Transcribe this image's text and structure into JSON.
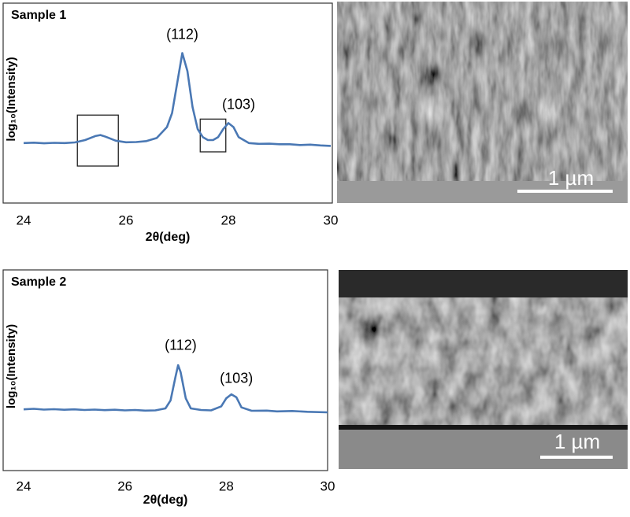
{
  "chart_data": [
    {
      "type": "line",
      "title": "Sample 1",
      "xlabel": "2θ(deg)",
      "ylabel": "log₁₀(Intensity)",
      "x": [
        24.0,
        24.2,
        24.4,
        24.6,
        24.8,
        25.0,
        25.2,
        25.4,
        25.5,
        25.6,
        25.8,
        26.0,
        26.2,
        26.4,
        26.6,
        26.8,
        26.9,
        27.0,
        27.1,
        27.2,
        27.3,
        27.4,
        27.5,
        27.6,
        27.7,
        27.8,
        27.9,
        28.0,
        28.1,
        28.2,
        28.4,
        28.6,
        28.8,
        29.0,
        29.2,
        29.4,
        29.6,
        29.8,
        30.0
      ],
      "series": [
        {
          "color": "#4a78b4",
          "values": [
            30.0,
            30.2,
            29.9,
            30.1,
            30.0,
            30.3,
            31.5,
            33.5,
            34.0,
            33.2,
            31.2,
            30.4,
            30.5,
            31.0,
            32.5,
            38,
            45,
            60,
            75,
            66,
            48,
            37,
            33,
            31.5,
            31.5,
            33,
            37,
            40,
            38,
            33,
            30,
            29.6,
            29.7,
            29.4,
            29.4,
            29.0,
            29.2,
            28.8,
            28.6
          ]
        }
      ],
      "xlim": [
        24,
        30
      ],
      "ylim": [
        0,
        100
      ],
      "xticks": [
        24,
        26,
        28,
        30
      ],
      "annotations": [
        {
          "text": "(112)",
          "x": 27.1,
          "y": 84
        },
        {
          "text": "(103)",
          "x": 28.2,
          "y": 49
        }
      ],
      "highlight_boxes": [
        {
          "x": [
            25.05,
            25.85
          ],
          "y": [
            18.5,
            44
          ]
        },
        {
          "x": [
            27.45,
            27.95
          ],
          "y": [
            25.6,
            42
          ]
        }
      ]
    },
    {
      "type": "line",
      "title": "Sample 2",
      "xlabel": "2θ(deg)",
      "ylabel": "log₁₀(Intensity)",
      "x": [
        24.0,
        24.2,
        24.4,
        24.6,
        24.8,
        25.0,
        25.2,
        25.4,
        25.6,
        25.8,
        26.0,
        26.2,
        26.4,
        26.6,
        26.8,
        26.9,
        27.0,
        27.05,
        27.1,
        27.2,
        27.3,
        27.5,
        27.7,
        27.9,
        28.0,
        28.1,
        28.2,
        28.3,
        28.5,
        28.8,
        29.0,
        29.3,
        29.6,
        30.0
      ],
      "series": [
        {
          "color": "#4a78b4",
          "values": [
            30.5,
            30.8,
            30.4,
            30.6,
            30.3,
            30.5,
            30.2,
            30.4,
            30.1,
            30.3,
            30.0,
            30.2,
            29.9,
            30.0,
            31,
            35,
            47,
            52.5,
            49,
            36,
            31,
            30.2,
            30.0,
            32,
            36,
            38,
            36.5,
            31.5,
            29.8,
            29.9,
            29.5,
            29.7,
            29.3,
            29.0
          ]
        }
      ],
      "xlim": [
        24,
        30
      ],
      "ylim": [
        0,
        100
      ],
      "xticks": [
        24,
        26,
        28,
        30
      ],
      "annotations": [
        {
          "text": "(112)",
          "x": 27.1,
          "y": 62
        },
        {
          "text": "(103)",
          "x": 28.2,
          "y": 45.5
        }
      ]
    }
  ],
  "images": [
    {
      "scale_bar": "1 µm"
    },
    {
      "scale_bar": "1 µm"
    }
  ]
}
